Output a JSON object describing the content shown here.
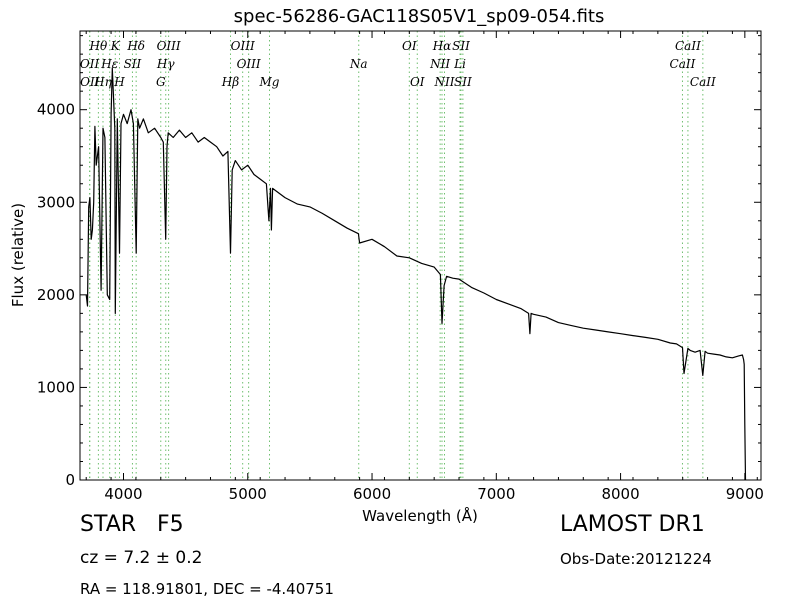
{
  "chart_data": {
    "type": "line",
    "title": "spec-56286-GAC118S05V1_sp09-054.fits",
    "xlabel": "Wavelength (Å)",
    "ylabel": "Flux (relative)",
    "xlim": [
      3650,
      9130
    ],
    "ylim": [
      0,
      4850
    ],
    "xticks": [
      4000,
      5000,
      6000,
      7000,
      8000,
      9000
    ],
    "yticks": [
      0,
      1000,
      2000,
      3000,
      4000
    ],
    "grid": false,
    "series_color": "#000000",
    "line_marker_color": "#6fbf6f",
    "series": [
      {
        "x": [
          3700,
          3710,
          3720,
          3730,
          3740,
          3750,
          3760,
          3770,
          3780,
          3800,
          3820,
          3835,
          3850,
          3870,
          3889,
          3900,
          3910,
          3930,
          3934,
          3950,
          3968,
          3980,
          4000,
          4030,
          4060,
          4080,
          4102,
          4115,
          4130,
          4160,
          4200,
          4250,
          4300,
          4320,
          4340,
          4350,
          4360,
          4400,
          4450,
          4500,
          4550,
          4600,
          4650,
          4700,
          4750,
          4800,
          4840,
          4861,
          4875,
          4900,
          4950,
          5000,
          5050,
          5100,
          5150,
          5170,
          5183,
          5190,
          5200,
          5300,
          5400,
          5500,
          5600,
          5700,
          5800,
          5890,
          5900,
          6000,
          6100,
          6200,
          6300,
          6400,
          6500,
          6550,
          6563,
          6580,
          6600,
          6650,
          6700,
          6800,
          6900,
          7000,
          7100,
          7200,
          7260,
          7270,
          7280,
          7300,
          7400,
          7500,
          7600,
          7700,
          7800,
          7900,
          8000,
          8100,
          8200,
          8300,
          8400,
          8450,
          8498,
          8510,
          8542,
          8560,
          8600,
          8640,
          8662,
          8680,
          8700,
          8750,
          8800,
          8850,
          8900,
          8950,
          8980,
          8990,
          8995,
          9000,
          9005
        ],
        "y": [
          2000,
          1880,
          2950,
          3050,
          2600,
          2700,
          3000,
          3820,
          3400,
          3600,
          2050,
          3800,
          3700,
          2000,
          1950,
          3950,
          4450,
          3800,
          1800,
          3900,
          2450,
          3850,
          3950,
          3850,
          4000,
          3850,
          2450,
          3900,
          3800,
          3900,
          3750,
          3800,
          3700,
          3650,
          2600,
          3600,
          3750,
          3700,
          3780,
          3700,
          3750,
          3650,
          3700,
          3650,
          3600,
          3500,
          3550,
          2450,
          3350,
          3450,
          3350,
          3400,
          3300,
          3250,
          3200,
          2800,
          3150,
          2700,
          3150,
          3050,
          2980,
          2950,
          2880,
          2800,
          2720,
          2660,
          2560,
          2600,
          2520,
          2420,
          2400,
          2340,
          2300,
          2220,
          1690,
          2100,
          2200,
          2180,
          2170,
          2080,
          2020,
          1950,
          1900,
          1850,
          1800,
          1580,
          1800,
          1790,
          1760,
          1700,
          1670,
          1640,
          1620,
          1600,
          1580,
          1560,
          1540,
          1520,
          1480,
          1470,
          1430,
          1150,
          1420,
          1400,
          1380,
          1400,
          1130,
          1390,
          1370,
          1360,
          1350,
          1330,
          1320,
          1340,
          1350,
          1300,
          1250,
          600,
          0
        ]
      }
    ],
    "spectral_lines": [
      {
        "label": "Hθ",
        "x": 3798,
        "row": 1
      },
      {
        "label": "K",
        "x": 3934,
        "row": 1
      },
      {
        "label": "Hδ",
        "x": 4102,
        "row": 1
      },
      {
        "label": "OIII",
        "x": 4363,
        "row": 1
      },
      {
        "label": "OIII",
        "x": 4959,
        "row": 1
      },
      {
        "label": "OI",
        "x": 6300,
        "row": 1
      },
      {
        "label": "Hα",
        "x": 6563,
        "row": 1
      },
      {
        "label": "SII",
        "x": 6716,
        "row": 1
      },
      {
        "label": "CaII",
        "x": 8542,
        "row": 1
      },
      {
        "label": "OII",
        "x": 3727,
        "row": 2
      },
      {
        "label": "Hε",
        "x": 3889,
        "row": 2
      },
      {
        "label": "SII",
        "x": 4072,
        "row": 2
      },
      {
        "label": "Hγ",
        "x": 4340,
        "row": 2
      },
      {
        "label": "OIII",
        "x": 5007,
        "row": 2
      },
      {
        "label": "Na",
        "x": 5893,
        "row": 2
      },
      {
        "label": "NII",
        "x": 6548,
        "row": 2
      },
      {
        "label": "Li",
        "x": 6708,
        "row": 2
      },
      {
        "label": "CaII",
        "x": 8498,
        "row": 2
      },
      {
        "label": "OII",
        "x": 3729,
        "row": 3
      },
      {
        "label": "Hη",
        "x": 3835,
        "row": 3
      },
      {
        "label": "H",
        "x": 3968,
        "row": 3
      },
      {
        "label": "G",
        "x": 4300,
        "row": 3
      },
      {
        "label": "Hβ",
        "x": 4861,
        "row": 3
      },
      {
        "label": "Mg",
        "x": 5175,
        "row": 3
      },
      {
        "label": "OI",
        "x": 6364,
        "row": 3
      },
      {
        "label": "NII",
        "x": 6583,
        "row": 3
      },
      {
        "label": "SII",
        "x": 6731,
        "row": 3
      },
      {
        "label": "CaII",
        "x": 8662,
        "row": 3
      }
    ]
  },
  "info": {
    "object_class": "STAR   F5",
    "catalog": "LAMOST DR1",
    "redshift": "cz = 7.2 ± 0.2",
    "obs_date": "Obs-Date:20121224",
    "coordinates": "RA = 118.91801, DEC = -4.40751"
  }
}
